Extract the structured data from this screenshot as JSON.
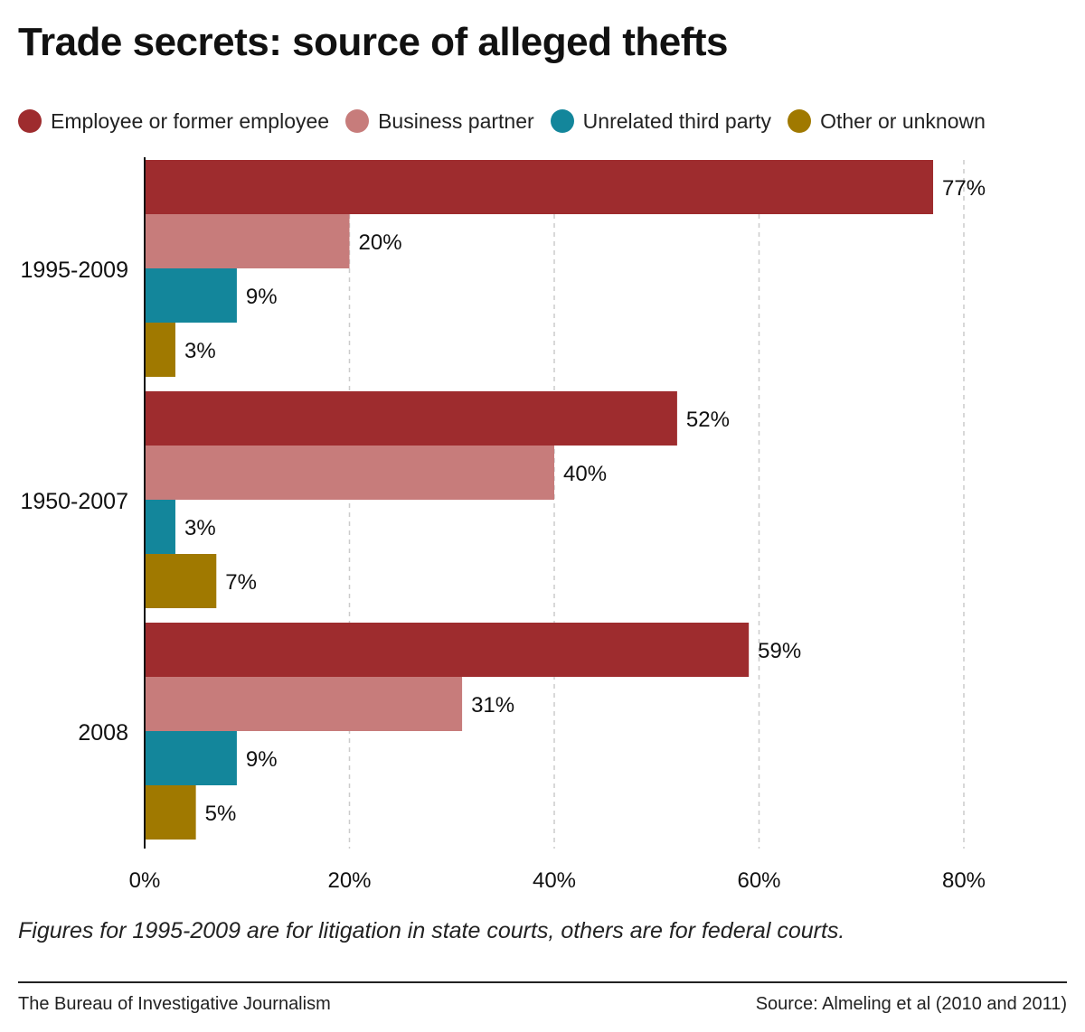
{
  "title": "Trade secrets: source of alleged thefts",
  "note": "Figures for 1995-2009 are for litigation in state courts, others are for federal courts.",
  "credit": "The Bureau of Investigative Journalism",
  "source": "Source: Almeling et al (2010 and 2011)",
  "chart_data": {
    "type": "bar",
    "orientation": "horizontal",
    "title": "Trade secrets: source of alleged thefts",
    "categories": [
      "1995-2009",
      "1950-2007",
      "2008"
    ],
    "series": [
      {
        "name": "Employee or former employee",
        "color": "#9e2c2e",
        "values": [
          77,
          52,
          59
        ]
      },
      {
        "name": "Business partner",
        "color": "#c77c7b",
        "values": [
          20,
          40,
          31
        ]
      },
      {
        "name": "Unrelated third party",
        "color": "#13869b",
        "values": [
          9,
          3,
          9
        ]
      },
      {
        "name": "Other or unknown",
        "color": "#a07900",
        "values": [
          3,
          7,
          5
        ]
      }
    ],
    "xlim": [
      0,
      80
    ],
    "xticks": [
      0,
      20,
      40,
      60,
      80
    ],
    "xtick_labels": [
      "0%",
      "20%",
      "40%",
      "60%",
      "80%"
    ],
    "value_suffix": "%",
    "grid": "vertical dashed",
    "legend_position": "top"
  }
}
